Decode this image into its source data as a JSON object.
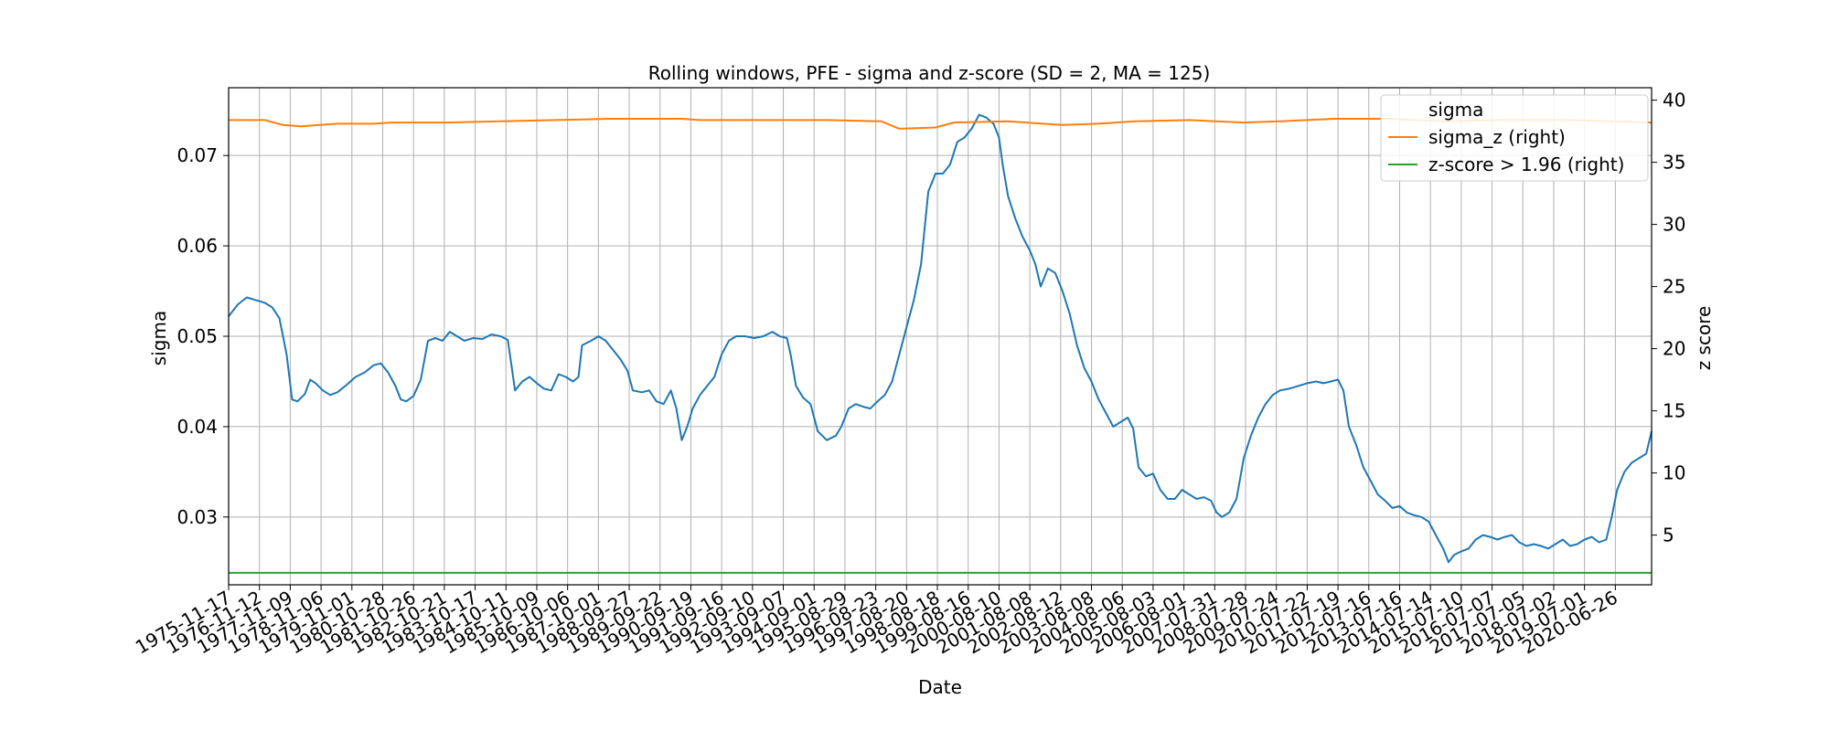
{
  "chart_data": {
    "type": "line",
    "title": "Rolling windows, PFE - sigma and z-score (SD = 2, MA = 125)",
    "xlabel": "Date",
    "ylabel_left": "sigma",
    "ylabel_right": "z score",
    "ylim_left": [
      0.0225,
      0.0775
    ],
    "ylim_right": [
      1.0,
      41.0
    ],
    "yticks_left": [
      "0.03",
      "0.04",
      "0.05",
      "0.06",
      "0.07"
    ],
    "yticks_right": [
      "5",
      "10",
      "15",
      "20",
      "25",
      "30",
      "35",
      "40"
    ],
    "x_ticks": [
      "1975-11-17",
      "1976-11-12",
      "1977-11-09",
      "1978-11-06",
      "1979-11-01",
      "1980-10-28",
      "1981-10-26",
      "1982-10-21",
      "1983-10-17",
      "1984-10-11",
      "1985-10-09",
      "1986-10-06",
      "1987-10-01",
      "1988-09-27",
      "1989-09-22",
      "1990-09-19",
      "1991-09-16",
      "1992-09-10",
      "1993-09-07",
      "1994-09-01",
      "1995-08-29",
      "1996-08-23",
      "1997-08-20",
      "1998-08-18",
      "1999-08-16",
      "2000-08-10",
      "2001-08-08",
      "2002-08-12",
      "2003-08-08",
      "2004-08-06",
      "2005-08-03",
      "2006-08-01",
      "2007-07-31",
      "2008-07-28",
      "2009-07-24",
      "2010-07-22",
      "2011-07-19",
      "2012-07-16",
      "2013-07-16",
      "2014-07-14",
      "2015-07-10",
      "2016-07-07",
      "2017-07-05",
      "2018-07-02",
      "2019-07-01",
      "2020-06-26"
    ],
    "grid": true,
    "legend_position": "top-right",
    "series": [
      {
        "name": "sigma",
        "axis": "left",
        "color": "#1f77b4",
        "points": [
          [
            0,
            0.0522
          ],
          [
            0.5,
            0.0535
          ],
          [
            1.0,
            0.0543
          ],
          [
            1.5,
            0.054
          ],
          [
            2.0,
            0.0537
          ],
          [
            2.4,
            0.0532
          ],
          [
            2.8,
            0.052
          ],
          [
            3.2,
            0.048
          ],
          [
            3.5,
            0.043
          ],
          [
            3.8,
            0.0428
          ],
          [
            4.2,
            0.0436
          ],
          [
            4.5,
            0.0452
          ],
          [
            4.8,
            0.0448
          ],
          [
            5.2,
            0.044
          ],
          [
            5.6,
            0.0435
          ],
          [
            6.0,
            0.0438
          ],
          [
            6.5,
            0.0446
          ],
          [
            7.0,
            0.0455
          ],
          [
            7.5,
            0.046
          ],
          [
            8.0,
            0.0468
          ],
          [
            8.4,
            0.047
          ],
          [
            8.8,
            0.046
          ],
          [
            9.2,
            0.0445
          ],
          [
            9.5,
            0.043
          ],
          [
            9.8,
            0.0428
          ],
          [
            10.2,
            0.0434
          ],
          [
            10.6,
            0.0452
          ],
          [
            11.0,
            0.0495
          ],
          [
            11.4,
            0.0498
          ],
          [
            11.8,
            0.0495
          ],
          [
            12.2,
            0.0505
          ],
          [
            12.6,
            0.05
          ],
          [
            13.0,
            0.0495
          ],
          [
            13.5,
            0.0498
          ],
          [
            14.0,
            0.0497
          ],
          [
            14.5,
            0.0502
          ],
          [
            15.0,
            0.05
          ],
          [
            15.4,
            0.0496
          ],
          [
            15.8,
            0.044
          ],
          [
            16.2,
            0.045
          ],
          [
            16.6,
            0.0455
          ],
          [
            17.0,
            0.0448
          ],
          [
            17.4,
            0.0442
          ],
          [
            17.8,
            0.044
          ],
          [
            18.2,
            0.0458
          ],
          [
            18.6,
            0.0455
          ],
          [
            19.0,
            0.045
          ],
          [
            19.3,
            0.0455
          ],
          [
            19.5,
            0.049
          ],
          [
            20.0,
            0.0495
          ],
          [
            20.4,
            0.05
          ],
          [
            20.8,
            0.0495
          ],
          [
            21.2,
            0.0485
          ],
          [
            21.6,
            0.0475
          ],
          [
            22.0,
            0.0462
          ],
          [
            22.3,
            0.044
          ],
          [
            22.8,
            0.0438
          ],
          [
            23.2,
            0.044
          ],
          [
            23.6,
            0.0428
          ],
          [
            24.0,
            0.0425
          ],
          [
            24.4,
            0.044
          ],
          [
            24.7,
            0.042
          ],
          [
            25.0,
            0.0385
          ],
          [
            25.3,
            0.04
          ],
          [
            25.6,
            0.042
          ],
          [
            26.0,
            0.0435
          ],
          [
            26.4,
            0.0445
          ],
          [
            26.8,
            0.0455
          ],
          [
            27.2,
            0.048
          ],
          [
            27.6,
            0.0495
          ],
          [
            28.0,
            0.05
          ],
          [
            28.5,
            0.05
          ],
          [
            29.0,
            0.0498
          ],
          [
            29.5,
            0.05
          ],
          [
            30.0,
            0.0505
          ],
          [
            30.4,
            0.05
          ],
          [
            30.8,
            0.0498
          ],
          [
            31.0,
            0.048
          ],
          [
            31.3,
            0.0445
          ],
          [
            31.7,
            0.0432
          ],
          [
            32.1,
            0.0425
          ],
          [
            32.5,
            0.0395
          ],
          [
            33.0,
            0.0385
          ],
          [
            33.5,
            0.039
          ],
          [
            33.8,
            0.04
          ],
          [
            34.2,
            0.042
          ],
          [
            34.6,
            0.0425
          ],
          [
            35.0,
            0.0422
          ],
          [
            35.4,
            0.042
          ],
          [
            35.8,
            0.0428
          ],
          [
            36.2,
            0.0435
          ],
          [
            36.6,
            0.045
          ],
          [
            37.0,
            0.048
          ],
          [
            37.4,
            0.051
          ],
          [
            37.8,
            0.054
          ],
          [
            38.2,
            0.058
          ],
          [
            38.6,
            0.066
          ],
          [
            39.0,
            0.068
          ],
          [
            39.4,
            0.068
          ],
          [
            39.8,
            0.069
          ],
          [
            40.2,
            0.0715
          ],
          [
            40.6,
            0.072
          ],
          [
            41.0,
            0.073
          ],
          [
            41.4,
            0.0745
          ],
          [
            41.8,
            0.0742
          ],
          [
            42.2,
            0.0735
          ],
          [
            42.5,
            0.072
          ],
          [
            42.7,
            0.069
          ],
          [
            43.0,
            0.0655
          ],
          [
            43.4,
            0.063
          ],
          [
            43.8,
            0.061
          ],
          [
            44.2,
            0.0595
          ],
          [
            44.5,
            0.058
          ],
          [
            44.8,
            0.0555
          ],
          [
            45.2,
            0.0575
          ],
          [
            45.6,
            0.057
          ],
          [
            46.0,
            0.055
          ],
          [
            46.4,
            0.0525
          ],
          [
            46.8,
            0.049
          ],
          [
            47.2,
            0.0465
          ],
          [
            47.6,
            0.045
          ],
          [
            48.0,
            0.043
          ],
          [
            48.4,
            0.0415
          ],
          [
            48.8,
            0.04
          ],
          [
            49.2,
            0.0405
          ],
          [
            49.6,
            0.041
          ],
          [
            49.9,
            0.0398
          ],
          [
            50.2,
            0.0355
          ],
          [
            50.6,
            0.0345
          ],
          [
            51.0,
            0.0348
          ],
          [
            51.4,
            0.033
          ],
          [
            51.8,
            0.032
          ],
          [
            52.2,
            0.032
          ],
          [
            52.6,
            0.033
          ],
          [
            53.0,
            0.0325
          ],
          [
            53.4,
            0.032
          ],
          [
            53.8,
            0.0322
          ],
          [
            54.2,
            0.0318
          ],
          [
            54.5,
            0.0305
          ],
          [
            54.8,
            0.03
          ],
          [
            55.2,
            0.0305
          ],
          [
            55.6,
            0.032
          ],
          [
            56.0,
            0.0365
          ],
          [
            56.4,
            0.039
          ],
          [
            56.8,
            0.041
          ],
          [
            57.2,
            0.0425
          ],
          [
            57.6,
            0.0435
          ],
          [
            58.0,
            0.044
          ],
          [
            58.5,
            0.0442
          ],
          [
            59.0,
            0.0445
          ],
          [
            59.5,
            0.0448
          ],
          [
            60.0,
            0.045
          ],
          [
            60.4,
            0.0448
          ],
          [
            60.8,
            0.045
          ],
          [
            61.2,
            0.0452
          ],
          [
            61.5,
            0.044
          ],
          [
            61.8,
            0.04
          ],
          [
            62.2,
            0.038
          ],
          [
            62.6,
            0.0355
          ],
          [
            63.0,
            0.034
          ],
          [
            63.4,
            0.0325
          ],
          [
            63.8,
            0.0318
          ],
          [
            64.2,
            0.031
          ],
          [
            64.6,
            0.0312
          ],
          [
            65.0,
            0.0305
          ],
          [
            65.4,
            0.0302
          ],
          [
            65.8,
            0.03
          ],
          [
            66.2,
            0.0295
          ],
          [
            66.6,
            0.028
          ],
          [
            67.0,
            0.0265
          ],
          [
            67.3,
            0.025
          ],
          [
            67.6,
            0.0258
          ],
          [
            68.0,
            0.0262
          ],
          [
            68.4,
            0.0265
          ],
          [
            68.8,
            0.0275
          ],
          [
            69.2,
            0.028
          ],
          [
            69.6,
            0.0278
          ],
          [
            70.0,
            0.0275
          ],
          [
            70.4,
            0.0278
          ],
          [
            70.8,
            0.028
          ],
          [
            71.2,
            0.0272
          ],
          [
            71.6,
            0.0268
          ],
          [
            72.0,
            0.027
          ],
          [
            72.4,
            0.0268
          ],
          [
            72.8,
            0.0265
          ],
          [
            73.2,
            0.027
          ],
          [
            73.6,
            0.0275
          ],
          [
            74.0,
            0.0268
          ],
          [
            74.4,
            0.027
          ],
          [
            74.8,
            0.0275
          ],
          [
            75.2,
            0.0278
          ],
          [
            75.6,
            0.0272
          ],
          [
            76.0,
            0.0275
          ],
          [
            76.3,
            0.03
          ],
          [
            76.6,
            0.033
          ],
          [
            77.0,
            0.035
          ],
          [
            77.4,
            0.036
          ],
          [
            77.8,
            0.0365
          ],
          [
            78.2,
            0.037
          ],
          [
            78.5,
            0.0395
          ]
        ]
      },
      {
        "name": "sigma_z (right)",
        "axis": "right",
        "color": "#ff7f0e",
        "points": [
          [
            0,
            38.4
          ],
          [
            2,
            38.4
          ],
          [
            3,
            38.0
          ],
          [
            4,
            37.9
          ],
          [
            5,
            38.0
          ],
          [
            6,
            38.1
          ],
          [
            8,
            38.1
          ],
          [
            9,
            38.2
          ],
          [
            12,
            38.2
          ],
          [
            15,
            38.3
          ],
          [
            18,
            38.4
          ],
          [
            21,
            38.5
          ],
          [
            25,
            38.5
          ],
          [
            26,
            38.4
          ],
          [
            30,
            38.4
          ],
          [
            33,
            38.4
          ],
          [
            36,
            38.3
          ],
          [
            37,
            37.7
          ],
          [
            39,
            37.8
          ],
          [
            40,
            38.2
          ],
          [
            43,
            38.3
          ],
          [
            46,
            38.0
          ],
          [
            48,
            38.1
          ],
          [
            50,
            38.3
          ],
          [
            53,
            38.4
          ],
          [
            56,
            38.2
          ],
          [
            58,
            38.3
          ],
          [
            61,
            38.5
          ],
          [
            64,
            38.5
          ],
          [
            67,
            38.3
          ],
          [
            70,
            38.4
          ],
          [
            74,
            38.4
          ],
          [
            78.5,
            38.2
          ]
        ]
      },
      {
        "name": "z-score > 1.96 (right)",
        "axis": "right",
        "color": "#2ca02c",
        "points": [
          [
            0,
            1.96
          ],
          [
            78.5,
            1.96
          ]
        ]
      }
    ]
  }
}
